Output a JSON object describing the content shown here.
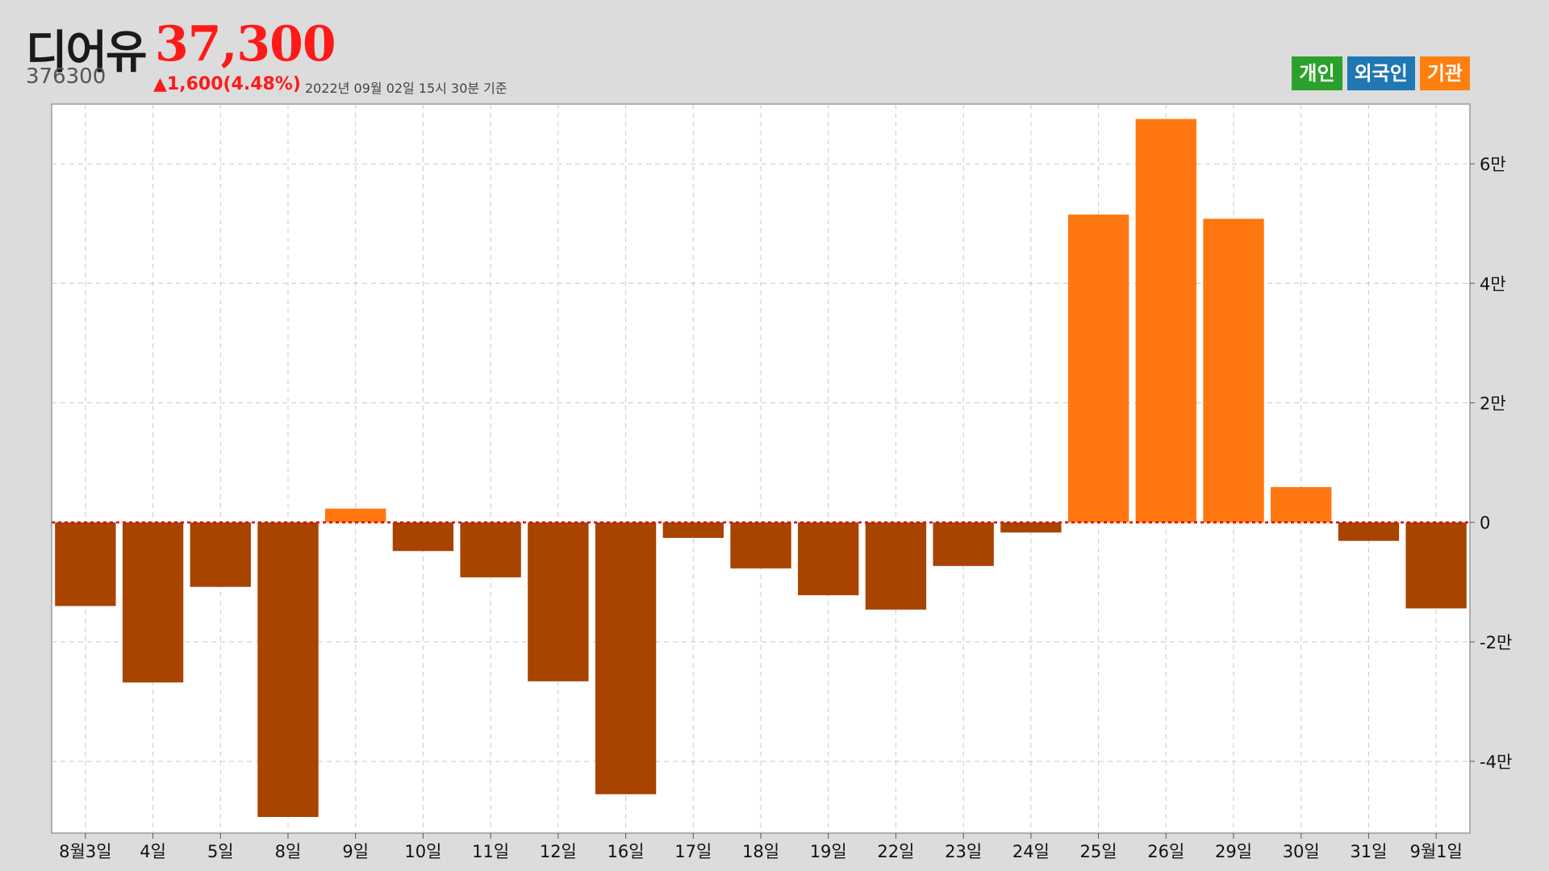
{
  "stock": {
    "name": "디어유",
    "code": "376300",
    "price": "37,300",
    "change": "▲1,600(4.48%)",
    "as_of": "2022년 09월 02일 15시 30분 기준"
  },
  "legend": [
    {
      "label": "개인",
      "color": "#2ca02c"
    },
    {
      "label": "외국인",
      "color": "#1f77b4"
    },
    {
      "label": "기관",
      "color": "#ff7f0e"
    }
  ],
  "colors": {
    "positive": "#ff7710",
    "negative": "#a84300",
    "zero_line": "#dd0000",
    "grid": "#c8c8c8",
    "plot_bg": "#ffffff"
  },
  "chart_data": {
    "type": "bar",
    "categories": [
      "8월3일",
      "4일",
      "5일",
      "8일",
      "9일",
      "10일",
      "11일",
      "12일",
      "16일",
      "17일",
      "18일",
      "19일",
      "22일",
      "23일",
      "24일",
      "25일",
      "26일",
      "29일",
      "30일",
      "31일",
      "9월1일"
    ],
    "values": [
      -14000,
      -26800,
      -10800,
      -49300,
      2300,
      -4800,
      -9200,
      -26600,
      -45500,
      -2600,
      -7700,
      -12200,
      -14600,
      -7300,
      -1700,
      51500,
      67500,
      50800,
      5900,
      -3100,
      -14400
    ],
    "y_ticks": [
      {
        "value": 60000,
        "label": "6만"
      },
      {
        "value": 40000,
        "label": "4만"
      },
      {
        "value": 20000,
        "label": "2만"
      },
      {
        "value": 0,
        "label": "0"
      },
      {
        "value": -20000,
        "label": "-2만"
      },
      {
        "value": -40000,
        "label": "-4만"
      }
    ],
    "ylim": [
      -52000,
      70000
    ],
    "grid": true,
    "legend_position": "top-right"
  }
}
